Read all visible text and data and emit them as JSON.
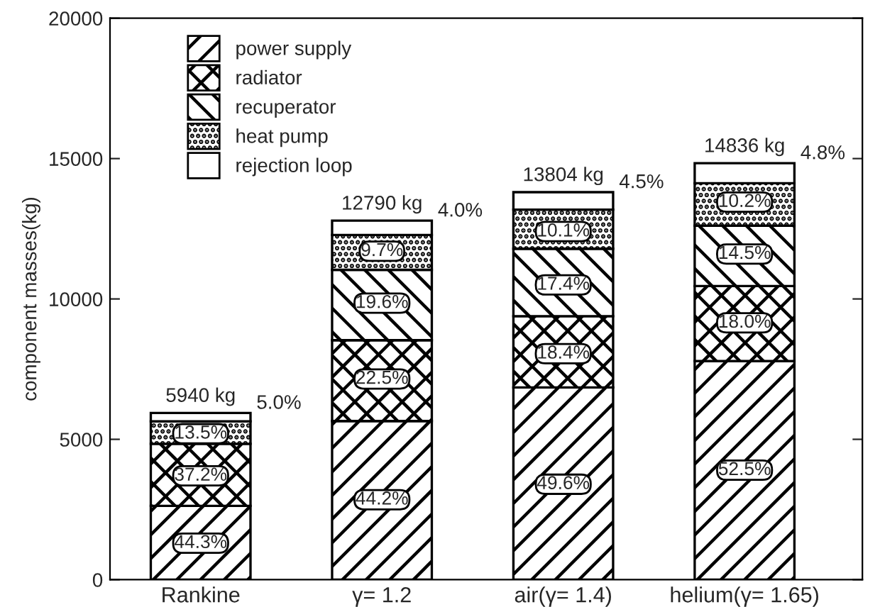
{
  "chart_data": {
    "type": "bar",
    "stacked": true,
    "ylabel": "component masses(kg)",
    "categories": [
      "Rankine",
      "γ= 1.2",
      "air(γ= 1.4)",
      "helium(γ= 1.65)"
    ],
    "series": [
      {
        "name": "power supply",
        "color": "#000000",
        "values": [
          2631,
          5652,
          6847,
          7790
        ]
      },
      {
        "name": "radiator",
        "color": "#000000",
        "values": [
          2210,
          2878,
          2540,
          2670
        ]
      },
      {
        "name": "recuperator",
        "color": "#000000",
        "values": [
          null,
          2507,
          2402,
          2151
        ]
      },
      {
        "name": "heat pump",
        "color": "#000000",
        "values": [
          802,
          1241,
          1394,
          1513
        ]
      },
      {
        "name": "rejection loop",
        "color": "#000000",
        "values": [
          297,
          512,
          621,
          712
        ]
      }
    ],
    "totals": [
      "5940 kg",
      "12790 kg",
      "13804 kg",
      "14836 kg"
    ],
    "annotations": [
      {
        "text": "44.3%",
        "x": "Rankine",
        "y": 1300
      },
      {
        "text": "37.2%",
        "x": "Rankine",
        "y": 3700
      },
      {
        "text": "13.5%",
        "x": "Rankine",
        "y": 5200
      },
      {
        "text": "5.0%",
        "x": "Rankine",
        "y": 5940
      },
      {
        "text": "44.2%",
        "x": "γ= 1.2",
        "y": 2850
      },
      {
        "text": "22.5%",
        "x": "γ= 1.2",
        "y": 7150
      },
      {
        "text": "19.6%",
        "x": "γ= 1.2",
        "y": 9850
      },
      {
        "text": "9.7%",
        "x": "γ= 1.2",
        "y": 11700
      },
      {
        "text": "4.0%",
        "x": "γ= 1.2",
        "y": 12790
      },
      {
        "text": "49.6%",
        "x": "air(γ= 1.4)",
        "y": 3400
      },
      {
        "text": "18.4%",
        "x": "air(γ= 1.4)",
        "y": 8050
      },
      {
        "text": "17.4%",
        "x": "air(γ= 1.4)",
        "y": 10500
      },
      {
        "text": "10.1%",
        "x": "air(γ= 1.4)",
        "y": 12400
      },
      {
        "text": "4.5%",
        "x": "air(γ= 1.4)",
        "y": 13804
      },
      {
        "text": "52.5%",
        "x": "helium(γ= 1.65)",
        "y": 3900
      },
      {
        "text": "18.0%",
        "x": "helium(γ= 1.65)",
        "y": 9150
      },
      {
        "text": "14.5%",
        "x": "helium(γ= 1.65)",
        "y": 11600
      },
      {
        "text": "10.2%",
        "x": "helium(γ= 1.65)",
        "y": 13450
      },
      {
        "text": "4.8%",
        "x": "helium(γ= 1.65)",
        "y": 14836
      }
    ],
    "ylim": [
      0,
      20000
    ],
    "yticks": [
      0,
      5000,
      10000,
      15000,
      20000
    ],
    "grid": false,
    "legend": "top left"
  }
}
